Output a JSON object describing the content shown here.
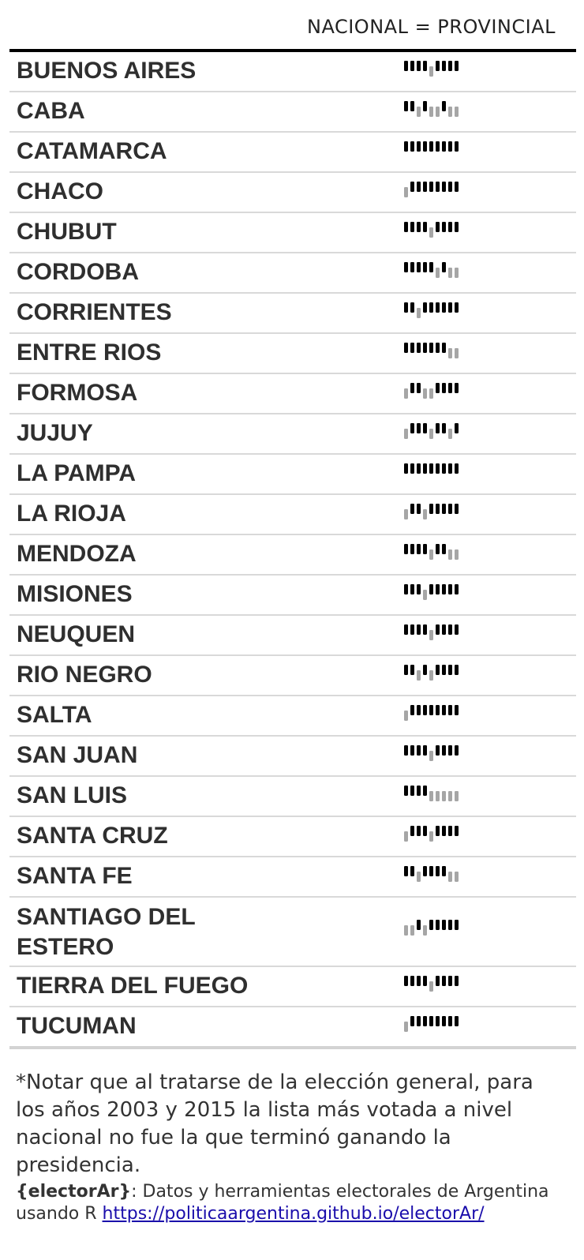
{
  "chart_data": {
    "type": "table",
    "column_header": "NACIONAL = PROVINCIAL",
    "legend": {
      "match": "#000000",
      "no_match": "#a6a6a6"
    },
    "rows": [
      {
        "province": "BUENOS AIRES",
        "match": [
          1,
          1,
          1,
          1,
          0,
          1,
          1,
          1,
          1
        ]
      },
      {
        "province": "CABA",
        "match": [
          1,
          1,
          0,
          1,
          0,
          0,
          1,
          0,
          0
        ]
      },
      {
        "province": "CATAMARCA",
        "match": [
          1,
          1,
          1,
          1,
          1,
          1,
          1,
          1,
          1
        ]
      },
      {
        "province": "CHACO",
        "match": [
          0,
          1,
          1,
          1,
          1,
          1,
          1,
          1,
          1
        ]
      },
      {
        "province": "CHUBUT",
        "match": [
          1,
          1,
          1,
          1,
          0,
          1,
          1,
          1,
          1
        ]
      },
      {
        "province": "CORDOBA",
        "match": [
          1,
          1,
          1,
          1,
          1,
          0,
          1,
          0,
          0
        ]
      },
      {
        "province": "CORRIENTES",
        "match": [
          1,
          1,
          0,
          1,
          1,
          1,
          1,
          1,
          1
        ]
      },
      {
        "province": "ENTRE RIOS",
        "match": [
          1,
          1,
          1,
          1,
          1,
          1,
          1,
          0,
          0
        ]
      },
      {
        "province": "FORMOSA",
        "match": [
          0,
          1,
          1,
          0,
          0,
          1,
          1,
          1,
          1
        ]
      },
      {
        "province": "JUJUY",
        "match": [
          0,
          1,
          1,
          1,
          0,
          1,
          1,
          0,
          1
        ]
      },
      {
        "province": "LA PAMPA",
        "match": [
          1,
          1,
          1,
          1,
          1,
          1,
          1,
          1,
          1
        ]
      },
      {
        "province": "LA RIOJA",
        "match": [
          0,
          1,
          1,
          0,
          1,
          1,
          1,
          1,
          1
        ]
      },
      {
        "province": "MENDOZA",
        "match": [
          1,
          1,
          1,
          1,
          0,
          1,
          1,
          0,
          0
        ]
      },
      {
        "province": "MISIONES",
        "match": [
          1,
          1,
          1,
          0,
          1,
          1,
          1,
          1,
          1
        ]
      },
      {
        "province": "NEUQUEN",
        "match": [
          1,
          1,
          1,
          1,
          0,
          1,
          1,
          1,
          1
        ]
      },
      {
        "province": "RIO NEGRO",
        "match": [
          1,
          1,
          0,
          1,
          0,
          1,
          1,
          1,
          1
        ]
      },
      {
        "province": "SALTA",
        "match": [
          0,
          1,
          1,
          1,
          1,
          1,
          1,
          1,
          1
        ]
      },
      {
        "province": "SAN JUAN",
        "match": [
          1,
          1,
          1,
          1,
          0,
          1,
          1,
          1,
          1
        ]
      },
      {
        "province": "SAN LUIS",
        "match": [
          1,
          1,
          1,
          1,
          0,
          0,
          0,
          0,
          0
        ]
      },
      {
        "province": "SANTA CRUZ",
        "match": [
          0,
          1,
          1,
          1,
          0,
          1,
          1,
          1,
          1
        ]
      },
      {
        "province": "SANTA FE",
        "match": [
          1,
          1,
          0,
          1,
          1,
          1,
          1,
          0,
          0
        ]
      },
      {
        "province": "SANTIAGO DEL ESTERO",
        "match": [
          0,
          0,
          1,
          0,
          1,
          1,
          1,
          1,
          1
        ]
      },
      {
        "province": "TIERRA DEL FUEGO",
        "match": [
          1,
          1,
          1,
          1,
          0,
          1,
          1,
          1,
          1
        ]
      },
      {
        "province": "TUCUMAN",
        "match": [
          0,
          1,
          1,
          1,
          1,
          1,
          1,
          1,
          1
        ]
      }
    ]
  },
  "note": "*Notar que al tratarse de la elección general, para los años 2003 y 2015 la lista más votada a nivel nacional no fue la que terminó ganando la presidencia.",
  "source": {
    "brand": "{electorAr}",
    "text": ": Datos y herramientas electorales de Argentina usando R ",
    "link": "https://politicaargentina.github.io/electorAr/"
  }
}
